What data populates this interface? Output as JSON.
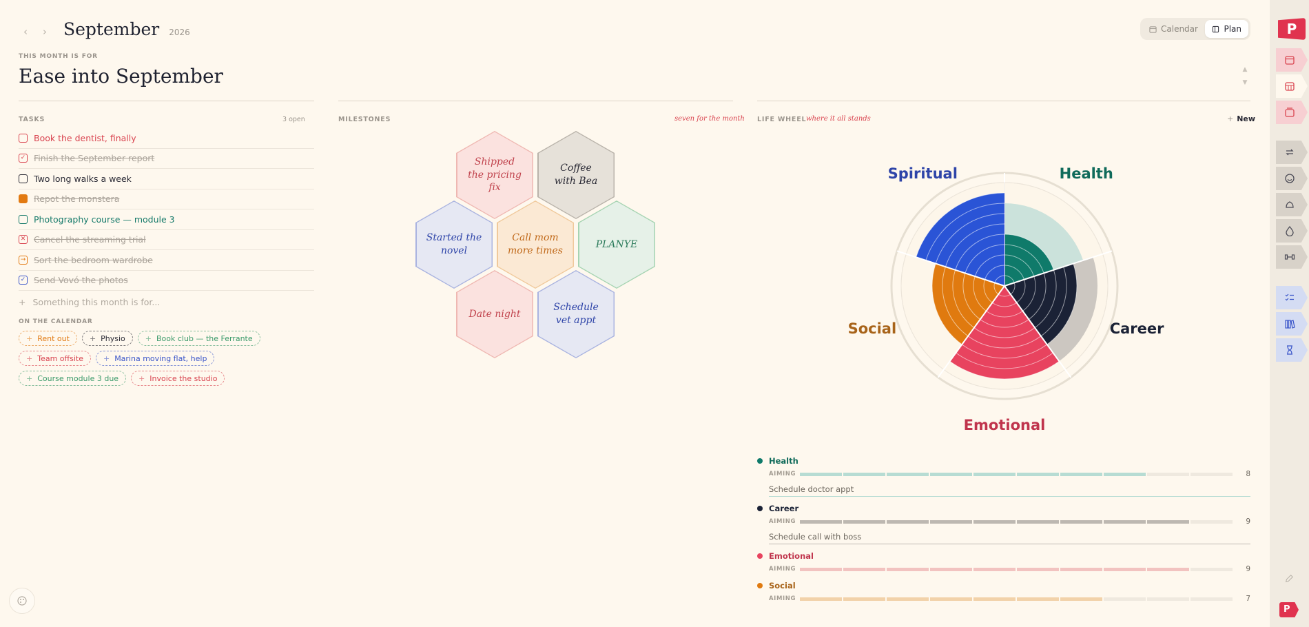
{
  "header": {
    "month": "September",
    "year": "2026",
    "views": [
      "Calendar",
      "Plan"
    ]
  },
  "month_for": {
    "label": "THIS MONTH IS FOR",
    "title": "Ease into September"
  },
  "tasks": {
    "label": "TASKS",
    "count": "3 open",
    "items": [
      {
        "label": "Book the dentist, finally",
        "state": "open",
        "color": "#d9434f"
      },
      {
        "label": "Finish the September report",
        "state": "done",
        "color": "#d9434f"
      },
      {
        "label": "Two long walks a week",
        "state": "open",
        "color": "#2a2a35"
      },
      {
        "label": "Repot the monstera",
        "state": "done",
        "color": "#e27a12"
      },
      {
        "label": "Photography course — module 3",
        "state": "open",
        "color": "#167a6a"
      },
      {
        "label": "Cancel the streaming trial",
        "state": "cancelled",
        "color": "#d9434f"
      },
      {
        "label": "Sort the bedroom wardrobe",
        "state": "moved",
        "color": "#e27a12"
      },
      {
        "label": "Send Vovó the photos",
        "state": "done",
        "color": "#3a55c9"
      }
    ],
    "add_placeholder": "Something this month is for..."
  },
  "on_calendar": {
    "label": "ON THE CALENDAR",
    "rows": [
      [
        {
          "label": "Rent out",
          "color": "#e27a12"
        },
        {
          "label": "Physio",
          "color": "#2a2a35"
        },
        {
          "label": "Book club — the Ferrante",
          "color": "#3a9a6a"
        }
      ],
      [
        {
          "label": "Team offsite",
          "color": "#d9434f"
        },
        {
          "label": "Marina moving flat, help",
          "color": "#3a55c9"
        }
      ],
      [
        {
          "label": "Course module 3 due",
          "color": "#3a9a6a"
        },
        {
          "label": "Invoice the studio",
          "color": "#d9434f"
        }
      ]
    ]
  },
  "milestones": {
    "label": "MILESTONES",
    "note": "seven for the month",
    "items": [
      {
        "label": "Shipped the pricing fix",
        "fill": "#fbe2df",
        "border": "#efb8b2",
        "color": "#c0424c"
      },
      {
        "label": "Coffee with Bea",
        "fill": "#e6e1d9",
        "border": "#b9b3aa",
        "color": "#2a2a35"
      },
      {
        "label": "Started the novel",
        "fill": "#e6e8f3",
        "border": "#a9b3e0",
        "color": "#2e44a8"
      },
      {
        "label": "Call mom more times",
        "fill": "#fbe9d4",
        "border": "#f0c99b",
        "color": "#c0691a"
      },
      {
        "label": "PLANYE",
        "fill": "#e6f1e8",
        "border": "#a6d4b2",
        "color": "#2a7a5a"
      },
      {
        "label": "Date night",
        "fill": "#fbe2df",
        "border": "#efb8b2",
        "color": "#c0424c"
      },
      {
        "label": "Schedule vet appt",
        "fill": "#e6e8f3",
        "border": "#a9b3e0",
        "color": "#2e44a8"
      }
    ]
  },
  "life_wheel": {
    "label": "LIFE WHEEL",
    "note": "where it all stands",
    "new_label": "New",
    "max": 10,
    "areas": [
      {
        "name": "Health",
        "color": "#0f7a6a",
        "value": 5,
        "aiming": 8,
        "aim_color": "#b7dcd3",
        "ghost_color": "#c5e0d9",
        "note": "Schedule doctor appt"
      },
      {
        "name": "Career",
        "color": "#1b2236",
        "value": 7,
        "aiming": 9,
        "aim_color": "#bdb8b1",
        "ghost_color": "#c6c2bc",
        "note": "Schedule call with boss"
      },
      {
        "name": "Emotional",
        "color": "#e8435f",
        "value": 9,
        "aiming": 9,
        "aim_color": "#f2c3c0",
        "ghost_color": "#f5c9c6",
        "note": ""
      },
      {
        "name": "Social",
        "color": "#e07a0f",
        "value": 7,
        "aiming": 7,
        "aim_color": "#f2d2a9",
        "ghost_color": "#f3d8b4",
        "note": ""
      },
      {
        "name": "Spiritual",
        "color": "#2a54d6",
        "value": 9,
        "aiming": 9,
        "aim_color": "#c0cbf0",
        "ghost_color": "#c7d1f1",
        "note": ""
      }
    ],
    "aiming_label": "AIMING"
  },
  "rail": {
    "icons": [
      "logo-icon",
      "calendar-month-icon",
      "calendar-grid-icon",
      "calendar-stack-icon",
      "repeat-icon",
      "mood-icon",
      "fitness-icon",
      "water-icon",
      "dumbbell-icon",
      "checklist-icon",
      "books-icon",
      "hourglass-icon",
      "pencil-icon",
      "logo-small-icon"
    ]
  }
}
